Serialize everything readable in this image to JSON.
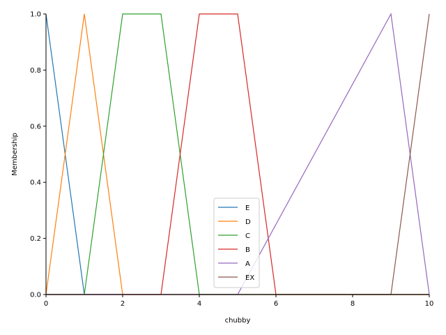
{
  "chart_data": {
    "type": "line",
    "title": "",
    "xlabel": "chubby",
    "ylabel": "Membership",
    "xlim": [
      0,
      10
    ],
    "ylim": [
      0,
      1.0
    ],
    "xticks": [
      0,
      2,
      4,
      6,
      8,
      10
    ],
    "yticks": [
      0.0,
      0.2,
      0.4,
      0.6,
      0.8,
      1.0
    ],
    "grid": false,
    "legend_position": "bottom-center",
    "series": [
      {
        "name": "E",
        "color": "#1f77b4",
        "x": [
          0,
          1,
          10
        ],
        "y": [
          1,
          0,
          0
        ]
      },
      {
        "name": "D",
        "color": "#ff7f0e",
        "x": [
          0,
          1,
          2,
          10
        ],
        "y": [
          0,
          1,
          0,
          0
        ]
      },
      {
        "name": "C",
        "color": "#2ca02c",
        "x": [
          0,
          1,
          2,
          3,
          4,
          10
        ],
        "y": [
          0,
          0,
          1,
          1,
          0,
          0
        ]
      },
      {
        "name": "B",
        "color": "#d62728",
        "x": [
          0,
          3,
          4,
          5,
          6,
          10
        ],
        "y": [
          0,
          0,
          1,
          1,
          0,
          0
        ]
      },
      {
        "name": "A",
        "color": "#9467bd",
        "x": [
          0,
          5,
          9,
          10
        ],
        "y": [
          0,
          0,
          1,
          0
        ]
      },
      {
        "name": "EX",
        "color": "#8c564b",
        "x": [
          0,
          9,
          10
        ],
        "y": [
          0,
          0,
          1
        ]
      }
    ]
  }
}
